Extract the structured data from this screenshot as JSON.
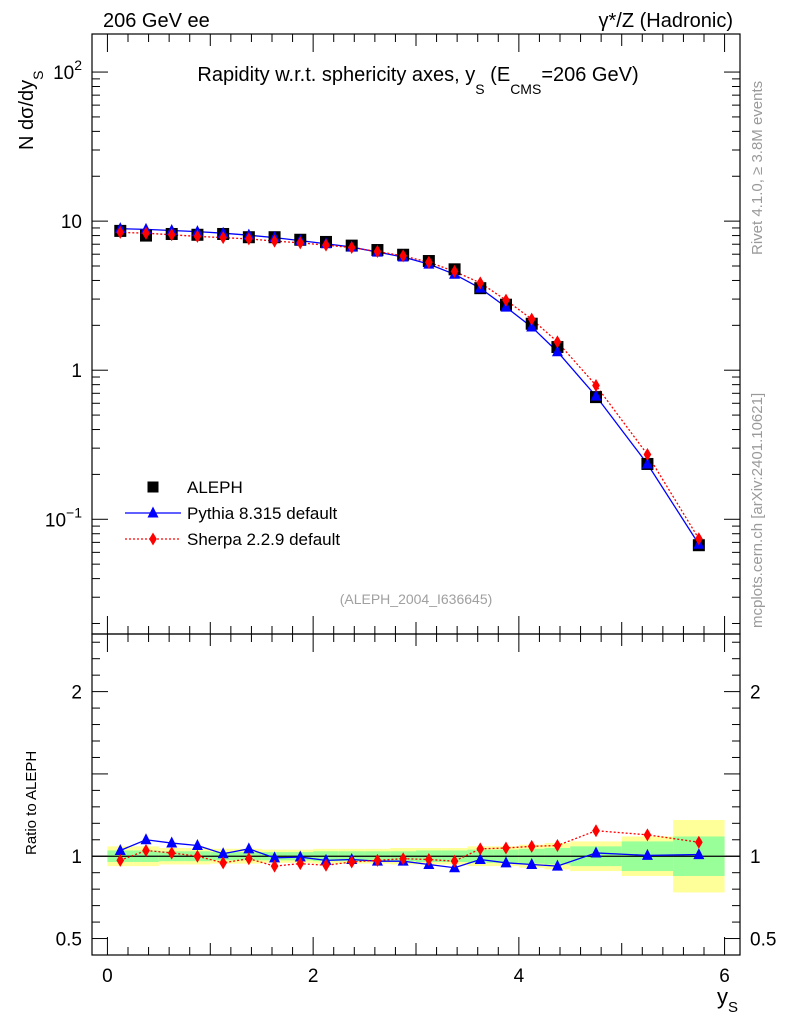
{
  "header": {
    "left": "206 GeV ee",
    "right": "γ*/Z (Hadronic)"
  },
  "side_labels": {
    "rivet": "Rivet 4.1.0, ≥ 3.8M events",
    "mcplots": "mcplots.cern.ch [arXiv:2401.10621]"
  },
  "watermark": "(ALEPH_2004_I636645)",
  "chart_data": [
    {
      "panel": "main",
      "type": "scatter",
      "title": "Rapidity w.r.t. sphericity axes, y_S (E_CMS=206 GeV)",
      "ylabel": "N  dσ/dy_S",
      "yscale": "log",
      "ylim": [
        0.017,
        180
      ],
      "xlim": [
        -0.15,
        6.15
      ],
      "y_ticks": [
        {
          "value": 100,
          "label": "10^2"
        },
        {
          "value": 10,
          "label": "10"
        },
        {
          "value": 1,
          "label": "1"
        },
        {
          "value": 0.1,
          "label": "10^-1"
        }
      ],
      "x": [
        0.125,
        0.375,
        0.625,
        0.875,
        1.125,
        1.375,
        1.625,
        1.875,
        2.125,
        2.375,
        2.625,
        2.875,
        3.125,
        3.375,
        3.625,
        3.875,
        4.125,
        4.375,
        4.75,
        5.25,
        5.75
      ],
      "x_bins": [
        [
          0,
          0.25
        ],
        [
          0.25,
          0.5
        ],
        [
          0.5,
          0.75
        ],
        [
          0.75,
          1
        ],
        [
          1,
          1.25
        ],
        [
          1.25,
          1.5
        ],
        [
          1.5,
          1.75
        ],
        [
          1.75,
          2
        ],
        [
          2,
          2.25
        ],
        [
          2.25,
          2.5
        ],
        [
          2.5,
          2.75
        ],
        [
          2.75,
          3
        ],
        [
          3,
          3.25
        ],
        [
          3.25,
          3.5
        ],
        [
          3.5,
          3.75
        ],
        [
          3.75,
          4
        ],
        [
          4,
          4.25
        ],
        [
          4.25,
          4.5
        ],
        [
          4.5,
          5
        ],
        [
          5,
          5.5
        ],
        [
          5.5,
          6
        ]
      ],
      "legend": {
        "position": "bottom-left",
        "entries": [
          {
            "label": "ALEPH",
            "color": "#000000",
            "marker": "square"
          },
          {
            "label": "Pythia 8.315 default",
            "color": "#0000ff",
            "marker": "triangle",
            "line": "solid"
          },
          {
            "label": "Sherpa 2.2.9 default",
            "color": "#ff0000",
            "marker": "diamond",
            "line": "dotted"
          }
        ]
      },
      "series": [
        {
          "name": "ALEPH",
          "values": [
            8.6,
            8.0,
            8.2,
            8.1,
            8.2,
            7.8,
            7.8,
            7.5,
            7.25,
            6.85,
            6.4,
            5.95,
            5.4,
            4.75,
            3.55,
            2.75,
            2.05,
            1.43,
            0.66,
            0.235,
            0.067
          ]
        },
        {
          "name": "Pythia 8.315 default",
          "values": [
            8.9,
            8.8,
            8.65,
            8.5,
            8.3,
            8.05,
            7.75,
            7.4,
            7.05,
            6.7,
            6.2,
            5.75,
            5.15,
            4.4,
            3.55,
            2.65,
            1.95,
            1.33,
            0.67,
            0.235,
            0.068
          ]
        },
        {
          "name": "Sherpa 2.2.9 default",
          "values": [
            8.4,
            8.3,
            8.1,
            7.9,
            7.75,
            7.6,
            7.35,
            7.15,
            6.9,
            6.65,
            6.25,
            5.85,
            5.3,
            4.6,
            3.85,
            2.95,
            2.2,
            1.55,
            0.79,
            0.272,
            0.074
          ]
        }
      ]
    },
    {
      "panel": "ratio",
      "type": "line",
      "ylabel": "Ratio to ALEPH",
      "xlabel": "y_S",
      "ylim": [
        0.4,
        2.35
      ],
      "xlim": [
        -0.15,
        6.15
      ],
      "x_ticks": [
        0,
        2,
        4,
        6
      ],
      "y_ticks": [
        0.5,
        1,
        2
      ],
      "y_tick_labels": [
        "0.5",
        "1",
        "2"
      ],
      "x": [
        0.125,
        0.375,
        0.625,
        0.875,
        1.125,
        1.375,
        1.625,
        1.875,
        2.125,
        2.375,
        2.625,
        2.875,
        3.125,
        3.375,
        3.625,
        3.875,
        4.125,
        4.375,
        4.75,
        5.25,
        5.75
      ],
      "band_stat": [
        0.035,
        0.035,
        0.03,
        0.03,
        0.025,
        0.025,
        0.025,
        0.025,
        0.03,
        0.03,
        0.03,
        0.03,
        0.035,
        0.035,
        0.04,
        0.04,
        0.045,
        0.05,
        0.06,
        0.09,
        0.12
      ],
      "band_total": [
        0.06,
        0.06,
        0.05,
        0.05,
        0.045,
        0.045,
        0.04,
        0.04,
        0.045,
        0.045,
        0.045,
        0.05,
        0.05,
        0.05,
        0.06,
        0.06,
        0.07,
        0.08,
        0.09,
        0.12,
        0.22
      ],
      "series": [
        {
          "name": "Pythia 8.315 default",
          "values": [
            1.035,
            1.1,
            1.08,
            1.065,
            1.015,
            1.045,
            0.99,
            0.995,
            0.975,
            0.98,
            0.97,
            0.97,
            0.95,
            0.93,
            0.98,
            0.96,
            0.95,
            0.94,
            1.02,
            1.005,
            1.01
          ]
        },
        {
          "name": "Sherpa 2.2.9 default",
          "values": [
            0.975,
            1.035,
            1.02,
            1.0,
            0.96,
            0.985,
            0.94,
            0.955,
            0.945,
            0.965,
            0.975,
            0.985,
            0.98,
            0.97,
            1.045,
            1.05,
            1.06,
            1.065,
            1.155,
            1.13,
            1.085
          ]
        }
      ]
    }
  ]
}
